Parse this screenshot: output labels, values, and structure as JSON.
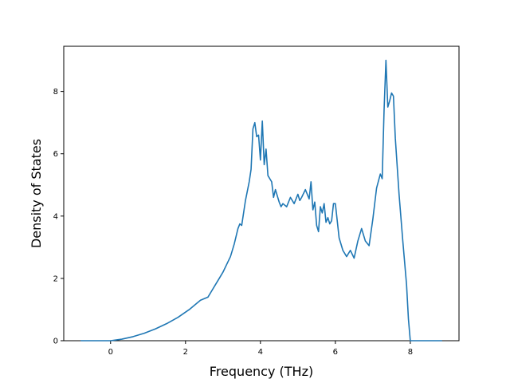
{
  "chart_data": {
    "type": "line",
    "title": "",
    "xlabel": "Frequency (THz)",
    "ylabel": "Density of States",
    "xlim": [
      -1.25,
      9.3
    ],
    "ylim": [
      0,
      9.45
    ],
    "xticks": [
      0,
      2,
      4,
      6,
      8
    ],
    "yticks": [
      0,
      2,
      4,
      6,
      8
    ],
    "grid": false,
    "legend": "none",
    "color": "#1f77b4",
    "series": [
      {
        "x": [
          -0.8,
          -0.4,
          0.0,
          0.3,
          0.6,
          0.9,
          1.2,
          1.5,
          1.8,
          2.1,
          2.4,
          2.6,
          2.7,
          2.8,
          2.9,
          3.0,
          3.1,
          3.2,
          3.3,
          3.4,
          3.45,
          3.5,
          3.6,
          3.7,
          3.75,
          3.8,
          3.85,
          3.9,
          3.95,
          4.0,
          4.05,
          4.1,
          4.15,
          4.2,
          4.3,
          4.35,
          4.4,
          4.5,
          4.55,
          4.6,
          4.7,
          4.8,
          4.9,
          5.0,
          5.05,
          5.1,
          5.2,
          5.3,
          5.35,
          5.4,
          5.45,
          5.5,
          5.55,
          5.6,
          5.65,
          5.7,
          5.75,
          5.8,
          5.85,
          5.9,
          5.95,
          6.0,
          6.1,
          6.2,
          6.3,
          6.4,
          6.5,
          6.6,
          6.7,
          6.75,
          6.8,
          6.9,
          7.0,
          7.1,
          7.2,
          7.25,
          7.3,
          7.35,
          7.4,
          7.45,
          7.5,
          7.55,
          7.6,
          7.7,
          7.8,
          7.9,
          7.95,
          8.0,
          8.05,
          8.1,
          8.3,
          8.6,
          8.85
        ],
        "y": [
          0.0,
          0.0,
          0.0,
          0.05,
          0.13,
          0.24,
          0.38,
          0.55,
          0.75,
          1.0,
          1.3,
          1.4,
          1.6,
          1.8,
          2.0,
          2.2,
          2.45,
          2.7,
          3.1,
          3.6,
          3.75,
          3.7,
          4.5,
          5.1,
          5.5,
          6.8,
          7.0,
          6.55,
          6.6,
          5.8,
          7.05,
          5.65,
          6.15,
          5.3,
          5.1,
          4.6,
          4.85,
          4.45,
          4.3,
          4.4,
          4.3,
          4.6,
          4.4,
          4.7,
          4.5,
          4.6,
          4.85,
          4.55,
          5.1,
          4.2,
          4.45,
          3.7,
          3.5,
          4.3,
          4.1,
          4.4,
          3.8,
          3.95,
          3.75,
          3.85,
          4.4,
          4.4,
          3.3,
          2.9,
          2.7,
          2.9,
          2.65,
          3.2,
          3.6,
          3.4,
          3.2,
          3.05,
          3.9,
          4.9,
          5.35,
          5.2,
          7.4,
          9.0,
          7.5,
          7.7,
          7.95,
          7.85,
          6.5,
          4.7,
          3.2,
          1.8,
          0.7,
          0.0,
          0.0,
          0.0,
          0.0,
          0.0,
          0.0
        ]
      }
    ]
  }
}
